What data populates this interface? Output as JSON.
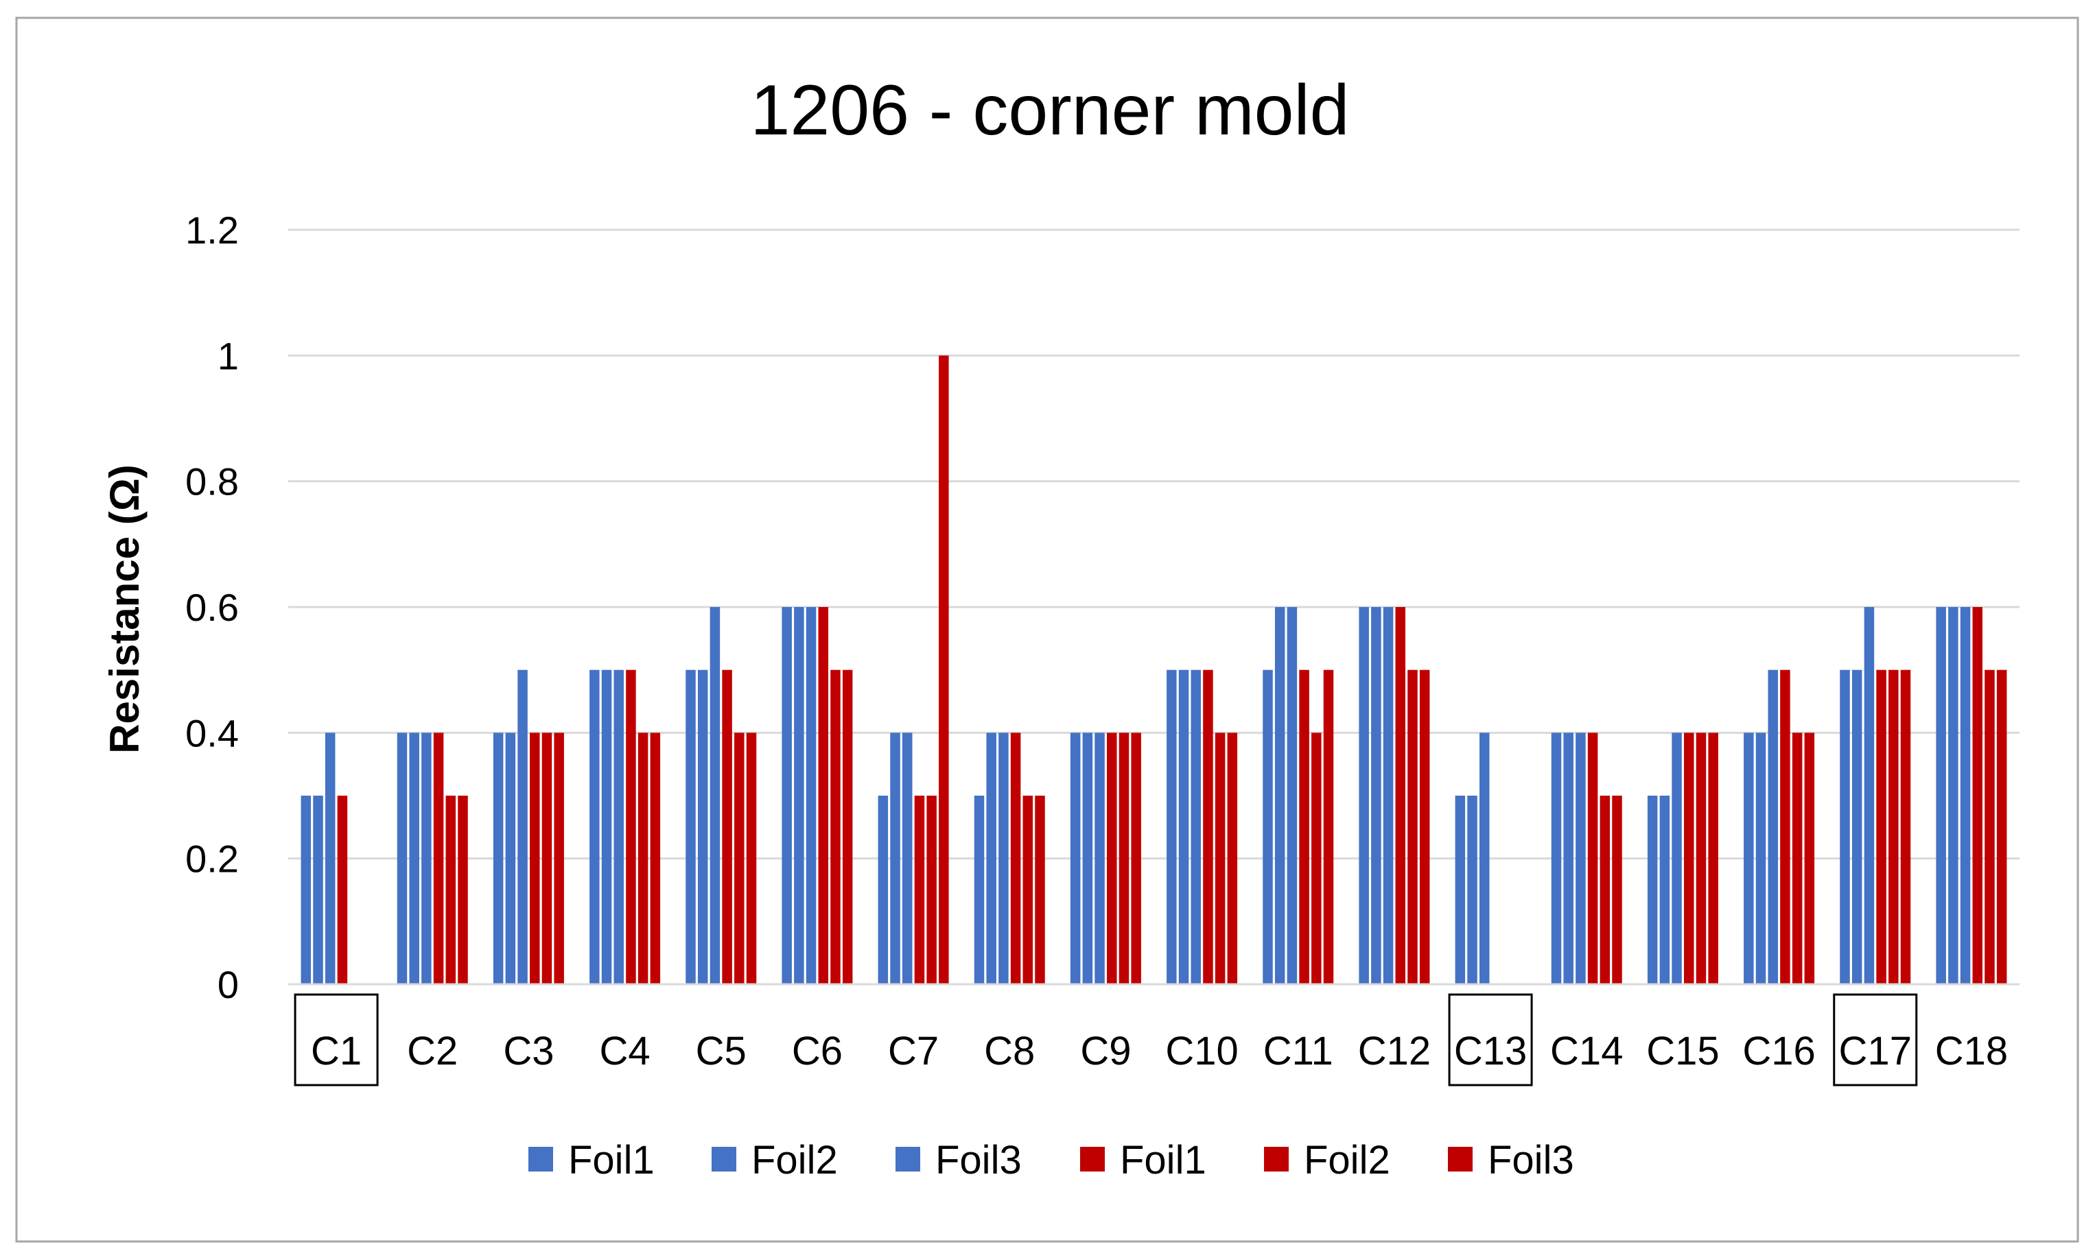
{
  "chart_data": {
    "type": "bar",
    "title": "1206 - corner mold",
    "xlabel": "",
    "ylabel": "Resistance (Ω)",
    "ylim": [
      0,
      1.2
    ],
    "yticks": [
      "0",
      "0.2",
      "0.4",
      "0.6",
      "0.8",
      "1",
      "1.2"
    ],
    "grid": true,
    "legend_position": "bottom",
    "categories": [
      "C1",
      "C2",
      "C3",
      "C4",
      "C5",
      "C6",
      "C7",
      "C8",
      "C9",
      "C10",
      "C11",
      "C12",
      "C13",
      "C14",
      "C15",
      "C16",
      "C17",
      "C18"
    ],
    "boxed_categories": [
      "C1",
      "C13",
      "C17"
    ],
    "series": [
      {
        "name": "Foil1",
        "color": "#4472C4",
        "values": [
          0.3,
          0.4,
          0.4,
          0.5,
          0.5,
          0.6,
          0.3,
          0.3,
          0.4,
          0.5,
          0.5,
          0.6,
          0.3,
          0.4,
          0.3,
          0.4,
          0.5,
          0.6
        ]
      },
      {
        "name": "Foil2",
        "color": "#4472C4",
        "values": [
          0.3,
          0.4,
          0.4,
          0.5,
          0.5,
          0.6,
          0.4,
          0.4,
          0.4,
          0.5,
          0.6,
          0.6,
          0.3,
          0.4,
          0.3,
          0.4,
          0.5,
          0.6
        ]
      },
      {
        "name": "Foil3",
        "color": "#4472C4",
        "values": [
          0.4,
          0.4,
          0.5,
          0.5,
          0.6,
          0.6,
          0.4,
          0.4,
          0.4,
          0.5,
          0.6,
          0.6,
          0.4,
          0.4,
          0.4,
          0.5,
          0.6,
          0.6
        ]
      },
      {
        "name": "Foil1",
        "color": "#C00000",
        "values": [
          0.3,
          0.4,
          0.4,
          0.5,
          0.5,
          0.6,
          0.3,
          0.4,
          0.4,
          0.5,
          0.5,
          0.6,
          0,
          0.4,
          0.4,
          0.5,
          0.5,
          0.6
        ]
      },
      {
        "name": "Foil2",
        "color": "#C00000",
        "values": [
          0,
          0.3,
          0.4,
          0.4,
          0.4,
          0.5,
          0.3,
          0.3,
          0.4,
          0.4,
          0.4,
          0.5,
          0,
          0.3,
          0.4,
          0.4,
          0.5,
          0.5
        ]
      },
      {
        "name": "Foil3",
        "color": "#C00000",
        "values": [
          0,
          0.3,
          0.4,
          0.4,
          0.4,
          0.5,
          1.0,
          0.3,
          0.4,
          0.4,
          0.5,
          0.5,
          0,
          0.3,
          0.4,
          0.4,
          0.5,
          0.5
        ]
      }
    ]
  }
}
